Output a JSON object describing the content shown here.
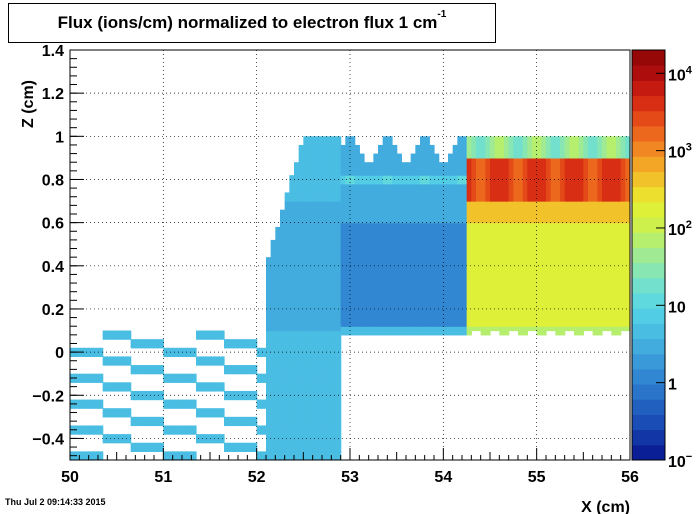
{
  "chart_data": {
    "type": "heatmap",
    "title_main": "Flux (ions/cm) normalized to electron flux 1 cm",
    "title_sup": "-1",
    "xlabel": "X (cm)",
    "ylabel": "Z (cm)",
    "xlim": [
      50,
      56
    ],
    "ylim": [
      -0.5,
      1.4
    ],
    "x_ticks": [
      50,
      51,
      52,
      53,
      54,
      55,
      56
    ],
    "x_tick_labels": [
      "50",
      "51",
      "52",
      "53",
      "54",
      "55",
      "56"
    ],
    "y_ticks": [
      -0.4,
      -0.2,
      0,
      0.2,
      0.4,
      0.6,
      0.8,
      1,
      1.2,
      1.4
    ],
    "y_tick_labels": [
      "−0.4",
      "−0.2",
      "0",
      "0.2",
      "0.4",
      "0.6",
      "0.8",
      "1",
      "1.2",
      "1.4"
    ],
    "grid": true,
    "colorbar": {
      "scale": "log",
      "range": [
        0.1,
        20000
      ],
      "labels": [
        {
          "base": "10",
          "exp": "4",
          "value": 10000
        },
        {
          "base": "10",
          "exp": "3",
          "value": 1000
        },
        {
          "base": "10",
          "exp": "2",
          "value": 100
        },
        {
          "base": "10",
          "exp": "",
          "value": 10
        },
        {
          "base": "1",
          "exp": "",
          "value": 1
        },
        {
          "base": "10",
          "exp": "−",
          "value": 0.1
        }
      ],
      "colors": [
        "#0a1e96",
        "#1236a6",
        "#1a4db5",
        "#2160bf",
        "#2a74c9",
        "#3287d2",
        "#3a9ad9",
        "#42acdf",
        "#4abde3",
        "#52cde6",
        "#5fd9de",
        "#72e0cc",
        "#88e6b2",
        "#9fea92",
        "#b6ee6e",
        "#cdf04c",
        "#def038",
        "#ecdf2e",
        "#f2c22a",
        "#f3a526",
        "#f18722",
        "#ec681d",
        "#e44a18",
        "#d72e14",
        "#c41a10",
        "#ad0d0c",
        "#960808"
      ]
    }
  },
  "date_text": "Thu Jul  2 09:14:33 2015"
}
